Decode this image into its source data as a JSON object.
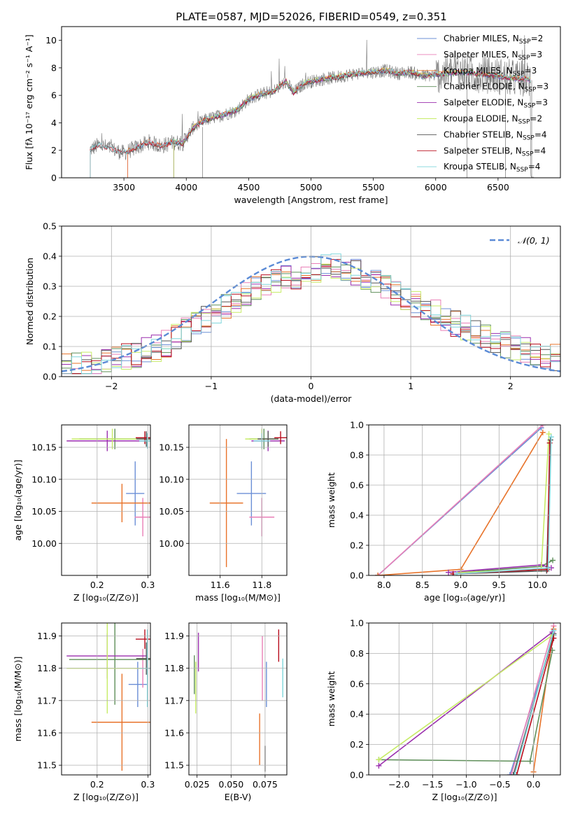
{
  "figure": {
    "title": "PLATE=0587, MJD=52026, FIBERID=0549, z=0.351"
  },
  "colors": {
    "Chabrier MILES": "#6b8fd6",
    "Salpeter MILES": "#e97fb7",
    "Kroupa MILES": "#e8732a",
    "Chabrier ELODIE": "#5f8f5a",
    "Salpeter ELODIE": "#9b2fae",
    "Kroupa ELODIE": "#c7ec67",
    "Chabrier STELIB": "#555555",
    "Salpeter STELIB": "#b80d1d",
    "Kroupa STELIB": "#7fd6dc",
    "gaussian": "#5b8bd6"
  },
  "chart_data": [
    {
      "id": "spectrum",
      "type": "line",
      "title": "PLATE=0587, MJD=52026, FIBERID=0549, z=0.351",
      "xlabel": "wavelength [Angstrom, rest frame]",
      "ylabel": "Flux [fλ 10⁻¹⁷ erg cm⁻² s⁻¹ A⁻¹]",
      "xlim": [
        3000,
        7000
      ],
      "ylim": [
        0,
        11
      ],
      "xticks": [
        3500,
        4000,
        4500,
        5000,
        5500,
        6000,
        6500
      ],
      "yticks": [
        0,
        2,
        4,
        6,
        8,
        10
      ],
      "grid": false,
      "legend_position": "upper-right",
      "continuum": [
        [
          3220,
          2.0
        ],
        [
          3300,
          2.4
        ],
        [
          3400,
          2.1
        ],
        [
          3500,
          1.8
        ],
        [
          3600,
          2.2
        ],
        [
          3700,
          2.6
        ],
        [
          3800,
          2.3
        ],
        [
          3900,
          2.6
        ],
        [
          3970,
          2.5
        ],
        [
          4050,
          3.6
        ],
        [
          4150,
          4.2
        ],
        [
          4300,
          4.6
        ],
        [
          4400,
          4.9
        ],
        [
          4500,
          5.7
        ],
        [
          4600,
          6.1
        ],
        [
          4700,
          6.3
        ],
        [
          4800,
          7.0
        ],
        [
          4860,
          6.2
        ],
        [
          4950,
          6.9
        ],
        [
          5100,
          7.2
        ],
        [
          5200,
          7.3
        ],
        [
          5300,
          7.5
        ],
        [
          5400,
          7.6
        ],
        [
          5500,
          7.7
        ],
        [
          5600,
          7.8
        ],
        [
          5700,
          7.6
        ],
        [
          5800,
          7.7
        ],
        [
          5893,
          7.4
        ],
        [
          6000,
          7.5
        ],
        [
          6100,
          7.6
        ],
        [
          6200,
          7.7
        ],
        [
          6300,
          7.6
        ],
        [
          6400,
          7.5
        ],
        [
          6500,
          7.4
        ],
        [
          6563,
          7.3
        ],
        [
          6700,
          7.2
        ],
        [
          6760,
          7.1
        ]
      ],
      "series": [
        {
          "name": "Chabrier MILES, N_SSP=2",
          "label": "Chabrier MILES, N",
          "sub": "SSP",
          "suffix": "=2",
          "color_key": "Chabrier MILES"
        },
        {
          "name": "Salpeter MILES, N_SSP=3",
          "label": "Salpeter MILES, N",
          "sub": "SSP",
          "suffix": "=3",
          "color_key": "Salpeter MILES"
        },
        {
          "name": "Kroupa MILES, N_SSP=3",
          "label": "Kroupa MILES, N",
          "sub": "SSP",
          "suffix": "=3",
          "color_key": "Kroupa MILES"
        },
        {
          "name": "Chabrier ELODIE, N_SSP=3",
          "label": "Chabrier ELODIE, N",
          "sub": "SSP",
          "suffix": "=3",
          "color_key": "Chabrier ELODIE"
        },
        {
          "name": "Salpeter ELODIE, N_SSP=3",
          "label": "Salpeter ELODIE, N",
          "sub": "SSP",
          "suffix": "=3",
          "color_key": "Salpeter ELODIE"
        },
        {
          "name": "Kroupa ELODIE, N_SSP=2",
          "label": "Kroupa ELODIE, N",
          "sub": "SSP",
          "suffix": "=2",
          "color_key": "Kroupa ELODIE"
        },
        {
          "name": "Chabrier STELIB, N_SSP=4",
          "label": "Chabrier STELIB, N",
          "sub": "SSP",
          "suffix": "=4",
          "color_key": "Chabrier STELIB"
        },
        {
          "name": "Salpeter STELIB, N_SSP=4",
          "label": "Salpeter STELIB, N",
          "sub": "SSP",
          "suffix": "=4",
          "color_key": "Salpeter STELIB"
        },
        {
          "name": "Kroupa STELIB, N_SSP=4",
          "label": "Kroupa STELIB, N",
          "sub": "SSP",
          "suffix": "=4",
          "color_key": "Kroupa STELIB"
        }
      ]
    },
    {
      "id": "residuals",
      "type": "line",
      "xlabel": "(data-model)/error",
      "ylabel": "Normed distribution",
      "xlim": [
        -2.5,
        2.5
      ],
      "ylim": [
        0,
        0.5
      ],
      "xticks": [
        -2,
        -1,
        0,
        1,
        2
      ],
      "yticks": [
        0.0,
        0.1,
        0.2,
        0.3,
        0.4,
        0.5
      ],
      "grid": true,
      "legend_position": "upper-right",
      "gaussian_label": "𝒩(0, 1)",
      "bin_width": 0.1,
      "histogram_envelope": [
        [
          -2.5,
          0.03
        ],
        [
          -2.0,
          0.05
        ],
        [
          -1.5,
          0.1
        ],
        [
          -1.0,
          0.2
        ],
        [
          -0.5,
          0.3
        ],
        [
          0.0,
          0.35
        ],
        [
          0.25,
          0.37
        ],
        [
          0.5,
          0.34
        ],
        [
          1.0,
          0.25
        ],
        [
          1.5,
          0.17
        ],
        [
          2.0,
          0.1
        ],
        [
          2.5,
          0.06
        ]
      ]
    },
    {
      "id": "age_vs_Z",
      "type": "scatter",
      "xlabel": "Z [log₁₀(Z/Z⊙)]",
      "ylabel": "age  [log₁₀(age/yr)]",
      "xlim": [
        0.13,
        0.305
      ],
      "ylim": [
        9.95,
        10.185
      ],
      "xticks": [
        0.2,
        0.3
      ],
      "yticks": [
        10.0,
        10.05,
        10.1,
        10.15
      ],
      "grid": true,
      "points": [
        {
          "series": "Chabrier MILES",
          "x": 0.275,
          "y": 10.078,
          "xerr": 0.018,
          "yerr": 0.05
        },
        {
          "series": "Salpeter MILES",
          "x": 0.29,
          "y": 10.041,
          "xerr": 0.016,
          "yerr": 0.03
        },
        {
          "series": "Kroupa MILES",
          "x": 0.249,
          "y": 10.063,
          "xerr": 0.06,
          "yerr": 0.03
        },
        {
          "series": "Chabrier ELODIE",
          "x": 0.235,
          "y": 10.163,
          "xerr": 0.07,
          "yerr": 0.016
        },
        {
          "series": "Salpeter ELODIE",
          "x": 0.22,
          "y": 10.16,
          "xerr": 0.08,
          "yerr": 0.016
        },
        {
          "series": "Kroupa ELODIE",
          "x": 0.23,
          "y": 10.163,
          "xerr": 0.08,
          "yerr": 0.016
        },
        {
          "series": "Chabrier STELIB",
          "x": 0.297,
          "y": 10.163,
          "xerr": 0.02,
          "yerr": 0.012
        },
        {
          "series": "Salpeter STELIB",
          "x": 0.294,
          "y": 10.165,
          "xerr": 0.018,
          "yerr": 0.01
        },
        {
          "series": "Kroupa STELIB",
          "x": 0.299,
          "y": 10.16,
          "xerr": 0.016,
          "yerr": 0.012
        }
      ]
    },
    {
      "id": "age_vs_mass",
      "type": "scatter",
      "xlabel": "mass [log₁₀(M/M⊙)]",
      "ylabel": "",
      "xlim": [
        11.45,
        11.92
      ],
      "ylim": [
        9.95,
        10.185
      ],
      "xticks": [
        11.6,
        11.8
      ],
      "yticks": [
        10.0,
        10.05,
        10.1,
        10.15
      ],
      "grid": true,
      "points": [
        {
          "series": "Chabrier MILES",
          "x": 11.75,
          "y": 10.078,
          "xerr": 0.07,
          "yerr": 0.05
        },
        {
          "series": "Salpeter MILES",
          "x": 11.8,
          "y": 10.041,
          "xerr": 0.06,
          "yerr": 0.03
        },
        {
          "series": "Kroupa MILES",
          "x": 11.63,
          "y": 10.063,
          "xerr": 0.08,
          "yerr": 0.1
        },
        {
          "series": "Chabrier ELODIE",
          "x": 11.81,
          "y": 10.163,
          "xerr": 0.07,
          "yerr": 0.016
        },
        {
          "series": "Salpeter ELODIE",
          "x": 11.83,
          "y": 10.16,
          "xerr": 0.08,
          "yerr": 0.016
        },
        {
          "series": "Kroupa ELODIE",
          "x": 11.8,
          "y": 10.163,
          "xerr": 0.08,
          "yerr": 0.016
        },
        {
          "series": "Chabrier STELIB",
          "x": 11.83,
          "y": 10.163,
          "xerr": 0.05,
          "yerr": 0.012
        },
        {
          "series": "Salpeter STELIB",
          "x": 11.89,
          "y": 10.165,
          "xerr": 0.03,
          "yerr": 0.01
        },
        {
          "series": "Kroupa STELIB",
          "x": 11.8,
          "y": 10.16,
          "xerr": 0.04,
          "yerr": 0.012
        }
      ]
    },
    {
      "id": "mass_weight_vs_age",
      "type": "line",
      "xlabel": "age  [log₁₀(age/yr)]",
      "ylabel": "mass weight",
      "xlim": [
        7.8,
        10.3
      ],
      "ylim": [
        0,
        1.0
      ],
      "xticks": [
        8.0,
        8.5,
        9.0,
        9.5,
        10.0
      ],
      "yticks": [
        0.0,
        0.2,
        0.4,
        0.6,
        0.8,
        1.0
      ],
      "grid": true,
      "series": [
        {
          "series": "Chabrier MILES",
          "points": [
            [
              7.92,
              0.0
            ],
            [
              10.05,
              0.98
            ]
          ]
        },
        {
          "series": "Salpeter MILES",
          "points": [
            [
              7.92,
              0.0
            ],
            [
              10.07,
              1.0
            ]
          ]
        },
        {
          "series": "Kroupa MILES",
          "points": [
            [
              7.92,
              0.0
            ],
            [
              9.0,
              0.04
            ],
            [
              10.07,
              0.95
            ]
          ]
        },
        {
          "series": "Chabrier ELODIE",
          "points": [
            [
              9.0,
              0.02
            ],
            [
              10.05,
              0.06
            ],
            [
              10.2,
              0.1
            ]
          ]
        },
        {
          "series": "Salpeter ELODIE",
          "points": [
            [
              8.84,
              0.02
            ],
            [
              10.05,
              0.07
            ],
            [
              10.18,
              0.05
            ]
          ]
        },
        {
          "series": "Kroupa ELODIE",
          "points": [
            [
              9.0,
              0.02
            ],
            [
              10.05,
              0.04
            ],
            [
              10.15,
              0.94
            ]
          ]
        },
        {
          "series": "Chabrier STELIB",
          "points": [
            [
              8.9,
              0.01
            ],
            [
              10.12,
              0.03
            ],
            [
              10.17,
              0.9
            ]
          ]
        },
        {
          "series": "Salpeter STELIB",
          "points": [
            [
              8.9,
              0.01
            ],
            [
              10.13,
              0.04
            ],
            [
              10.16,
              0.88
            ]
          ]
        },
        {
          "series": "Kroupa STELIB",
          "points": [
            [
              8.95,
              0.01
            ],
            [
              10.14,
              0.05
            ],
            [
              10.18,
              0.92
            ]
          ]
        }
      ]
    },
    {
      "id": "mass_vs_Z",
      "type": "scatter",
      "xlabel": "Z [log₁₀(Z/Z⊙)]",
      "ylabel": "mass [log₁₀(M/M⊙)]",
      "xlim": [
        0.13,
        0.305
      ],
      "ylim": [
        11.47,
        11.94
      ],
      "xticks": [
        0.2,
        0.3
      ],
      "yticks": [
        11.5,
        11.6,
        11.7,
        11.8,
        11.9
      ],
      "grid": true,
      "points": [
        {
          "series": "Chabrier MILES",
          "x": 0.28,
          "y": 11.75,
          "xerr": 0.018,
          "yerr": 0.07
        },
        {
          "series": "Salpeter MILES",
          "x": 0.29,
          "y": 11.8,
          "xerr": 0.016,
          "yerr": 0.06
        },
        {
          "series": "Kroupa MILES",
          "x": 0.249,
          "y": 11.633,
          "xerr": 0.06,
          "yerr": 0.15
        },
        {
          "series": "Chabrier ELODIE",
          "x": 0.235,
          "y": 11.827,
          "xerr": 0.09,
          "yerr": 0.14
        },
        {
          "series": "Salpeter ELODIE",
          "x": 0.22,
          "y": 11.838,
          "xerr": 0.08,
          "yerr": 0.07
        },
        {
          "series": "Kroupa ELODIE",
          "x": 0.22,
          "y": 11.8,
          "xerr": 0.08,
          "yerr": 0.14
        },
        {
          "series": "Chabrier STELIB",
          "x": 0.297,
          "y": 11.83,
          "xerr": 0.02,
          "yerr": 0.05
        },
        {
          "series": "Salpeter STELIB",
          "x": 0.294,
          "y": 11.89,
          "xerr": 0.018,
          "yerr": 0.03
        },
        {
          "series": "Kroupa STELIB",
          "x": 0.299,
          "y": 11.8,
          "xerr": 0.016,
          "yerr": 0.12
        }
      ]
    },
    {
      "id": "mass_vs_ebv",
      "type": "scatter",
      "xlabel": "E(B-V)",
      "ylabel": "",
      "xlim": [
        0.019,
        0.091
      ],
      "ylim": [
        11.47,
        11.94
      ],
      "xticks": [
        0.025,
        0.05,
        0.075
      ],
      "yticks": [
        11.5,
        11.6,
        11.7,
        11.8,
        11.9
      ],
      "grid": true,
      "points": [
        {
          "series": "Chabrier MILES",
          "x": 0.076,
          "y": 11.75,
          "yerr": 0.07
        },
        {
          "series": "Salpeter MILES",
          "x": 0.073,
          "y": 11.8,
          "yerr": 0.1
        },
        {
          "series": "Kroupa MILES",
          "x": 0.071,
          "y": 11.58,
          "yerr": 0.08
        },
        {
          "series": "Chabrier ELODIE",
          "x": 0.023,
          "y": 11.78,
          "yerr": 0.06
        },
        {
          "series": "Salpeter ELODIE",
          "x": 0.026,
          "y": 11.85,
          "yerr": 0.06
        },
        {
          "series": "Kroupa ELODIE",
          "x": 0.024,
          "y": 11.74,
          "yerr": 0.08
        },
        {
          "series": "Chabrier STELIB",
          "x": 0.075,
          "y": 11.52,
          "yerr": 0.04
        },
        {
          "series": "Salpeter STELIB",
          "x": 0.085,
          "y": 11.87,
          "yerr": 0.05
        },
        {
          "series": "Kroupa STELIB",
          "x": 0.088,
          "y": 11.77,
          "yerr": 0.06
        }
      ]
    },
    {
      "id": "mass_weight_vs_Z",
      "type": "line",
      "xlabel": "Z [log₁₀(Z/Z⊙)]",
      "ylabel": "mass weight",
      "xlim": [
        -2.45,
        0.4
      ],
      "ylim": [
        0,
        1.0
      ],
      "xticks": [
        -2.0,
        -1.5,
        -1.0,
        -0.5,
        0.0
      ],
      "yticks": [
        0.0,
        0.2,
        0.4,
        0.6,
        0.8,
        1.0
      ],
      "grid": true,
      "series": [
        {
          "series": "Chabrier MILES",
          "points": [
            [
              -0.35,
              0.0
            ],
            [
              0.3,
              0.92
            ]
          ]
        },
        {
          "series": "Salpeter MILES",
          "points": [
            [
              -0.33,
              0.0
            ],
            [
              0.3,
              0.98
            ]
          ]
        },
        {
          "series": "Kroupa MILES",
          "points": [
            [
              0.0,
              0.02
            ],
            [
              0.3,
              0.96
            ]
          ]
        },
        {
          "series": "Chabrier ELODIE",
          "points": [
            [
              -2.3,
              0.1
            ],
            [
              -0.05,
              0.09
            ],
            [
              0.28,
              0.82
            ]
          ]
        },
        {
          "series": "Salpeter ELODIE",
          "points": [
            [
              -2.3,
              0.06
            ],
            [
              0.28,
              0.94
            ]
          ]
        },
        {
          "series": "Kroupa ELODIE",
          "points": [
            [
              -2.3,
              0.1
            ],
            [
              0.28,
              0.92
            ]
          ]
        },
        {
          "series": "Chabrier STELIB",
          "points": [
            [
              -0.3,
              0.0
            ],
            [
              0.3,
              0.93
            ]
          ]
        },
        {
          "series": "Salpeter STELIB",
          "points": [
            [
              -0.25,
              0.0
            ],
            [
              0.3,
              0.9
            ]
          ]
        },
        {
          "series": "Kroupa STELIB",
          "points": [
            [
              -0.28,
              0.0
            ],
            [
              0.3,
              0.95
            ]
          ]
        }
      ]
    }
  ]
}
